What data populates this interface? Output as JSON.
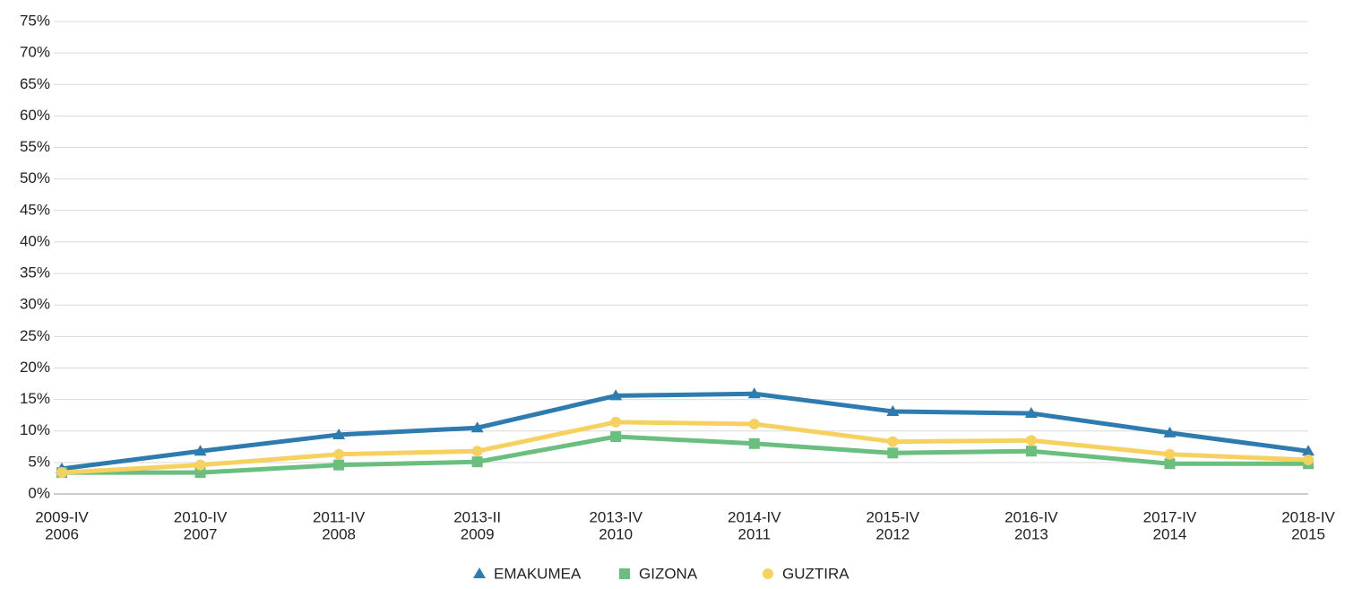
{
  "chart_data": {
    "type": "line",
    "categories": [
      [
        "2009-IV",
        "2006"
      ],
      [
        "2010-IV",
        "2007"
      ],
      [
        "2011-IV",
        "2008"
      ],
      [
        "2013-II",
        "2009"
      ],
      [
        "2013-IV",
        "2010"
      ],
      [
        "2014-IV",
        "2011"
      ],
      [
        "2015-IV",
        "2012"
      ],
      [
        "2016-IV",
        "2013"
      ],
      [
        "2017-IV",
        "2014"
      ],
      [
        "2018-IV",
        "2015"
      ]
    ],
    "series": [
      {
        "name": "EMAKUMEA",
        "color": "#2e7bb0",
        "marker": "triangle",
        "values": [
          4.0,
          6.8,
          9.4,
          10.5,
          15.6,
          15.9,
          13.1,
          12.8,
          9.7,
          6.8
        ]
      },
      {
        "name": "GIZONA",
        "color": "#6abf7f",
        "marker": "square",
        "values": [
          3.4,
          3.4,
          4.6,
          5.1,
          9.1,
          8.0,
          6.5,
          6.8,
          4.8,
          4.8
        ]
      },
      {
        "name": "GUZTIRA",
        "color": "#f7d160",
        "marker": "circle",
        "values": [
          3.4,
          4.6,
          6.3,
          6.8,
          11.4,
          11.1,
          8.3,
          8.5,
          6.3,
          5.4
        ]
      }
    ],
    "ylim": [
      0,
      75
    ],
    "yticks": [
      {
        "value": 0,
        "label": "0%"
      },
      {
        "value": 5,
        "label": "5%"
      },
      {
        "value": 10,
        "label": "10%"
      },
      {
        "value": 15,
        "label": "15%"
      },
      {
        "value": 20,
        "label": "20%"
      },
      {
        "value": 25,
        "label": "25%"
      },
      {
        "value": 30,
        "label": "30%"
      },
      {
        "value": 35,
        "label": "35%"
      },
      {
        "value": 40,
        "label": "40%"
      },
      {
        "value": 45,
        "label": "45%"
      },
      {
        "value": 50,
        "label": "50%"
      },
      {
        "value": 55,
        "label": "55%"
      },
      {
        "value": 60,
        "label": "60%"
      },
      {
        "value": 65,
        "label": "65%"
      },
      {
        "value": 70,
        "label": "70%"
      },
      {
        "value": 75,
        "label": "75%"
      }
    ],
    "grid": true,
    "legend": "bottom"
  }
}
